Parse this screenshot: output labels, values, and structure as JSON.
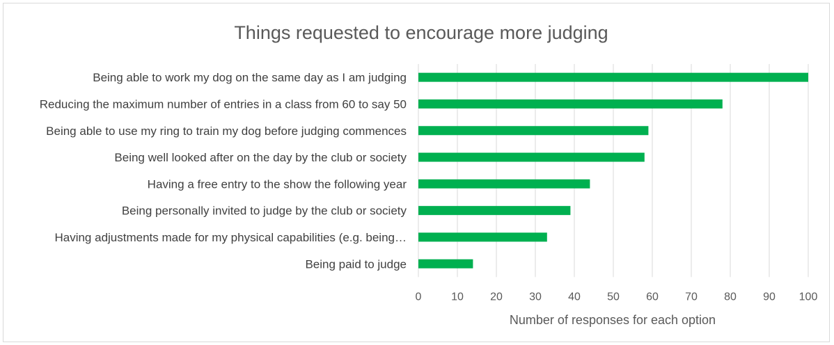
{
  "chart_data": {
    "type": "bar",
    "orientation": "horizontal",
    "title": "Things requested to encourage more judging",
    "xlabel": "Number of responses for each option",
    "ylabel": "",
    "xlim": [
      0,
      100
    ],
    "xticks": [
      0,
      10,
      20,
      30,
      40,
      50,
      60,
      70,
      80,
      90,
      100
    ],
    "grid": true,
    "legend": "none",
    "bar_color": "#00b050",
    "categories": [
      "Being able to work my dog on the same day as I am judging",
      "Reducing the maximum number of entries in a class from 60 to say 50",
      "Being able to use my ring to train my dog before judging commences",
      "Being well looked after on the day by the club or society",
      "Having a free entry to the show the following year",
      "Being personally invited to judge by the club or society",
      "Having adjustments made for my physical capabilities (e.g. being…",
      "Being paid to judge"
    ],
    "values": [
      100,
      78,
      59,
      58,
      44,
      39,
      33,
      14
    ]
  }
}
